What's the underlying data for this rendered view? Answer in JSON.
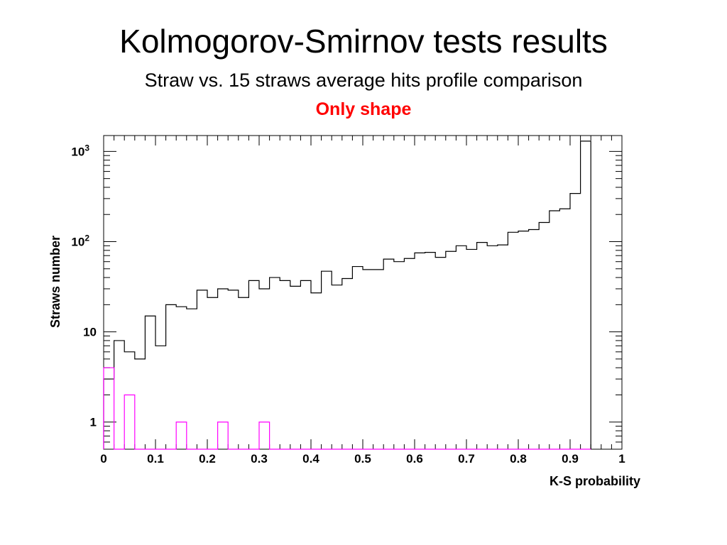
{
  "slide": {
    "title": "Kolmogorov-Smirnov tests results",
    "subtitle": "Straw vs. 15 straws average hits profile comparison",
    "note": "Only shape",
    "note_color": "#ff0000"
  },
  "chart_data": {
    "type": "histogram",
    "title": "",
    "xlabel": "K-S probability",
    "ylabel": "Straws number",
    "xlim": [
      0,
      1
    ],
    "ylim": [
      0.5,
      1500
    ],
    "yscale": "log",
    "bin_width": 0.02,
    "x_ticks": [
      "0",
      "0.1",
      "0.2",
      "0.3",
      "0.4",
      "0.5",
      "0.6",
      "0.7",
      "0.8",
      "0.9",
      "1"
    ],
    "y_ticks": [
      {
        "value": 1,
        "base": "1",
        "exp": ""
      },
      {
        "value": 10,
        "base": "10",
        "exp": ""
      },
      {
        "value": 100,
        "base": "10",
        "exp": "2"
      },
      {
        "value": 1000,
        "base": "10",
        "exp": "3"
      }
    ],
    "series": [
      {
        "color": "#000000",
        "values": [
          3,
          8,
          6,
          5,
          15,
          7,
          20,
          19,
          18,
          29,
          24,
          30,
          29,
          24,
          37,
          30,
          40,
          37,
          32,
          37,
          27,
          47,
          33,
          39,
          53,
          49,
          49,
          64,
          60,
          65,
          75,
          76,
          67,
          78,
          90,
          82,
          98,
          90,
          92,
          127,
          131,
          136,
          163,
          220,
          231,
          342,
          1300
        ]
      },
      {
        "color": "#ff00ff",
        "values": [
          4,
          0,
          2,
          0,
          0,
          0,
          0,
          1,
          0,
          0,
          0,
          1,
          0,
          0,
          0,
          1,
          0,
          0,
          0,
          0,
          0,
          0,
          0,
          0,
          0,
          0,
          0,
          0,
          0,
          0,
          0,
          0,
          0,
          0,
          0,
          0,
          0,
          0,
          0,
          0,
          0,
          0,
          0,
          0,
          0,
          0,
          0
        ]
      }
    ],
    "grid": false
  }
}
